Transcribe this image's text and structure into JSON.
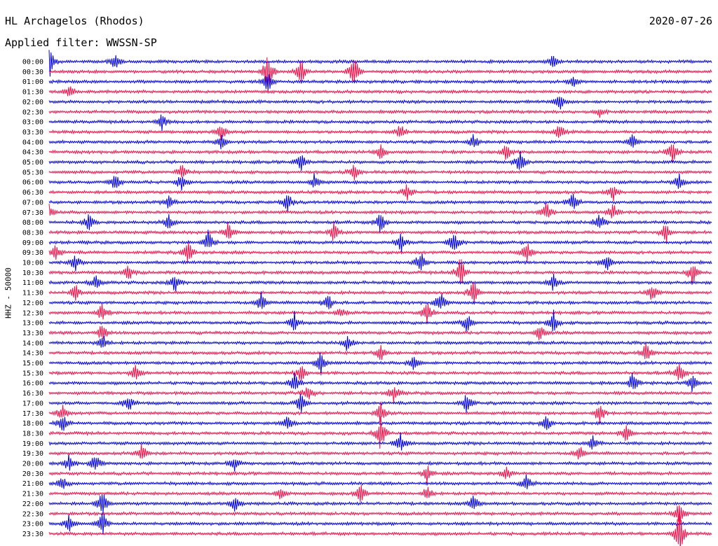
{
  "header": {
    "station": "HL Archagelos (Rhodos)",
    "date": "2020-07-26",
    "filter": "Applied filter: WWSSN-SP"
  },
  "colors": {
    "trace_a": "#0000e6",
    "trace_b": "#f0104a",
    "background": "#ffffff"
  },
  "chart_data": {
    "type": "line",
    "title": "HL Archagelos (Rhodos)",
    "subtitle": "Applied filter: WWSSN-SP",
    "ylabel": "HHZ - 50000",
    "xlabel": "",
    "grid": false,
    "legend": "none",
    "series": [
      {
        "values": []
      }
    ],
    "row_labels": [
      "00:00",
      "00:30",
      "01:00",
      "01:30",
      "02:00",
      "02:30",
      "03:00",
      "03:30",
      "04:00",
      "04:30",
      "05:00",
      "05:30",
      "06:00",
      "06:30",
      "07:00",
      "07:30",
      "08:00",
      "08:30",
      "09:00",
      "09:30",
      "10:00",
      "10:30",
      "11:00",
      "11:30",
      "12:00",
      "12:30",
      "13:00",
      "13:30",
      "14:00",
      "14:30",
      "15:00",
      "15:30",
      "16:00",
      "16:30",
      "17:00",
      "17:30",
      "18:00",
      "18:30",
      "19:00",
      "19:30",
      "20:00",
      "20:30",
      "21:00",
      "21:30",
      "22:00",
      "22:30",
      "23:00",
      "23:30"
    ],
    "row_colors": [
      "blue",
      "red"
    ],
    "events": [
      {
        "row": 0,
        "t": 0.0,
        "amp": 1.2
      },
      {
        "row": 0,
        "t": 0.1,
        "amp": 0.6
      },
      {
        "row": 0,
        "t": 0.76,
        "amp": 0.5
      },
      {
        "row": 1,
        "t": 0.33,
        "amp": 1.4
      },
      {
        "row": 1,
        "t": 0.38,
        "amp": 0.9
      },
      {
        "row": 1,
        "t": 0.46,
        "amp": 1.2
      },
      {
        "row": 2,
        "t": 0.33,
        "amp": 0.8
      },
      {
        "row": 2,
        "t": 0.79,
        "amp": 0.4
      },
      {
        "row": 3,
        "t": 0.03,
        "amp": 0.6
      },
      {
        "row": 4,
        "t": 0.77,
        "amp": 0.6
      },
      {
        "row": 5,
        "t": 0.83,
        "amp": 0.3
      },
      {
        "row": 6,
        "t": 0.17,
        "amp": 0.6
      },
      {
        "row": 7,
        "t": 0.26,
        "amp": 0.6
      },
      {
        "row": 7,
        "t": 0.53,
        "amp": 0.6
      },
      {
        "row": 7,
        "t": 0.77,
        "amp": 0.6
      },
      {
        "row": 8,
        "t": 0.26,
        "amp": 0.6
      },
      {
        "row": 8,
        "t": 0.64,
        "amp": 0.6
      },
      {
        "row": 8,
        "t": 0.88,
        "amp": 0.5
      },
      {
        "row": 9,
        "t": 0.5,
        "amp": 0.6
      },
      {
        "row": 9,
        "t": 0.69,
        "amp": 0.6
      },
      {
        "row": 9,
        "t": 0.94,
        "amp": 0.9
      },
      {
        "row": 10,
        "t": 0.38,
        "amp": 0.6
      },
      {
        "row": 10,
        "t": 0.71,
        "amp": 0.8
      },
      {
        "row": 11,
        "t": 0.2,
        "amp": 0.6
      },
      {
        "row": 11,
        "t": 0.46,
        "amp": 0.6
      },
      {
        "row": 12,
        "t": 0.1,
        "amp": 0.6
      },
      {
        "row": 12,
        "t": 0.2,
        "amp": 0.7
      },
      {
        "row": 12,
        "t": 0.4,
        "amp": 0.6
      },
      {
        "row": 12,
        "t": 0.95,
        "amp": 0.6
      },
      {
        "row": 13,
        "t": 0.54,
        "amp": 0.7
      },
      {
        "row": 13,
        "t": 0.85,
        "amp": 0.6
      },
      {
        "row": 14,
        "t": 0.18,
        "amp": 0.6
      },
      {
        "row": 14,
        "t": 0.36,
        "amp": 0.7
      },
      {
        "row": 14,
        "t": 0.79,
        "amp": 0.8
      },
      {
        "row": 15,
        "t": 0.0,
        "amp": 0.5
      },
      {
        "row": 15,
        "t": 0.75,
        "amp": 0.7
      },
      {
        "row": 15,
        "t": 0.85,
        "amp": 0.7
      },
      {
        "row": 16,
        "t": 0.06,
        "amp": 0.6
      },
      {
        "row": 16,
        "t": 0.18,
        "amp": 0.6
      },
      {
        "row": 16,
        "t": 0.5,
        "amp": 0.8
      },
      {
        "row": 16,
        "t": 0.83,
        "amp": 0.7
      },
      {
        "row": 17,
        "t": 0.27,
        "amp": 0.7
      },
      {
        "row": 17,
        "t": 0.43,
        "amp": 0.7
      },
      {
        "row": 17,
        "t": 0.93,
        "amp": 0.7
      },
      {
        "row": 18,
        "t": 0.24,
        "amp": 0.8
      },
      {
        "row": 18,
        "t": 0.53,
        "amp": 0.8
      },
      {
        "row": 18,
        "t": 0.61,
        "amp": 1.0
      },
      {
        "row": 19,
        "t": 0.01,
        "amp": 0.6
      },
      {
        "row": 19,
        "t": 0.21,
        "amp": 0.9
      },
      {
        "row": 19,
        "t": 0.72,
        "amp": 0.9
      },
      {
        "row": 20,
        "t": 0.04,
        "amp": 0.6
      },
      {
        "row": 20,
        "t": 0.56,
        "amp": 0.9
      },
      {
        "row": 20,
        "t": 0.84,
        "amp": 0.7
      },
      {
        "row": 21,
        "t": 0.12,
        "amp": 0.6
      },
      {
        "row": 21,
        "t": 0.62,
        "amp": 1.3
      },
      {
        "row": 21,
        "t": 0.97,
        "amp": 0.8
      },
      {
        "row": 22,
        "t": 0.07,
        "amp": 0.6
      },
      {
        "row": 22,
        "t": 0.19,
        "amp": 0.7
      },
      {
        "row": 22,
        "t": 0.76,
        "amp": 0.6
      },
      {
        "row": 23,
        "t": 0.04,
        "amp": 0.6
      },
      {
        "row": 23,
        "t": 0.64,
        "amp": 1.0
      },
      {
        "row": 23,
        "t": 0.91,
        "amp": 0.7
      },
      {
        "row": 24,
        "t": 0.32,
        "amp": 0.8
      },
      {
        "row": 24,
        "t": 0.42,
        "amp": 0.7
      },
      {
        "row": 24,
        "t": 0.59,
        "amp": 0.8
      },
      {
        "row": 25,
        "t": 0.08,
        "amp": 0.7
      },
      {
        "row": 25,
        "t": 0.44,
        "amp": 0.4
      },
      {
        "row": 25,
        "t": 0.57,
        "amp": 0.9
      },
      {
        "row": 26,
        "t": 0.37,
        "amp": 0.7
      },
      {
        "row": 26,
        "t": 0.63,
        "amp": 0.7
      },
      {
        "row": 26,
        "t": 0.76,
        "amp": 0.9
      },
      {
        "row": 27,
        "t": 0.08,
        "amp": 0.7
      },
      {
        "row": 27,
        "t": 0.74,
        "amp": 0.6
      },
      {
        "row": 28,
        "t": 0.08,
        "amp": 0.7
      },
      {
        "row": 28,
        "t": 0.45,
        "amp": 0.6
      },
      {
        "row": 29,
        "t": 0.5,
        "amp": 0.6
      },
      {
        "row": 29,
        "t": 0.9,
        "amp": 0.8
      },
      {
        "row": 30,
        "t": 0.41,
        "amp": 0.9
      },
      {
        "row": 30,
        "t": 0.55,
        "amp": 0.6
      },
      {
        "row": 31,
        "t": 0.13,
        "amp": 0.6
      },
      {
        "row": 31,
        "t": 0.38,
        "amp": 0.7
      },
      {
        "row": 31,
        "t": 0.95,
        "amp": 0.8
      },
      {
        "row": 32,
        "t": 0.37,
        "amp": 0.8
      },
      {
        "row": 32,
        "t": 0.88,
        "amp": 0.8
      },
      {
        "row": 32,
        "t": 0.97,
        "amp": 0.8
      },
      {
        "row": 33,
        "t": 0.39,
        "amp": 0.7
      },
      {
        "row": 33,
        "t": 0.52,
        "amp": 0.7
      },
      {
        "row": 34,
        "t": 0.12,
        "amp": 0.7
      },
      {
        "row": 34,
        "t": 0.38,
        "amp": 0.8
      },
      {
        "row": 34,
        "t": 0.63,
        "amp": 0.7
      },
      {
        "row": 35,
        "t": 0.02,
        "amp": 0.7
      },
      {
        "row": 35,
        "t": 0.5,
        "amp": 0.7
      },
      {
        "row": 35,
        "t": 0.83,
        "amp": 0.9
      },
      {
        "row": 36,
        "t": 0.02,
        "amp": 0.8
      },
      {
        "row": 36,
        "t": 0.36,
        "amp": 0.6
      },
      {
        "row": 36,
        "t": 0.75,
        "amp": 0.7
      },
      {
        "row": 37,
        "t": 0.5,
        "amp": 1.2
      },
      {
        "row": 37,
        "t": 0.87,
        "amp": 0.6
      },
      {
        "row": 38,
        "t": 0.53,
        "amp": 0.8
      },
      {
        "row": 38,
        "t": 0.82,
        "amp": 0.6
      },
      {
        "row": 39,
        "t": 0.14,
        "amp": 0.7
      },
      {
        "row": 39,
        "t": 0.8,
        "amp": 0.6
      },
      {
        "row": 40,
        "t": 0.03,
        "amp": 0.6
      },
      {
        "row": 40,
        "t": 0.07,
        "amp": 0.7
      },
      {
        "row": 40,
        "t": 0.28,
        "amp": 0.6
      },
      {
        "row": 41,
        "t": 0.57,
        "amp": 0.7
      },
      {
        "row": 41,
        "t": 0.69,
        "amp": 0.5
      },
      {
        "row": 42,
        "t": 0.02,
        "amp": 0.5
      },
      {
        "row": 42,
        "t": 0.72,
        "amp": 0.6
      },
      {
        "row": 43,
        "t": 0.35,
        "amp": 0.6
      },
      {
        "row": 43,
        "t": 0.47,
        "amp": 0.7
      },
      {
        "row": 43,
        "t": 0.57,
        "amp": 0.6
      },
      {
        "row": 44,
        "t": 0.08,
        "amp": 1.0
      },
      {
        "row": 44,
        "t": 0.28,
        "amp": 0.6
      },
      {
        "row": 44,
        "t": 0.64,
        "amp": 0.6
      },
      {
        "row": 45,
        "t": 0.95,
        "amp": 0.9
      },
      {
        "row": 46,
        "t": 0.03,
        "amp": 0.7
      },
      {
        "row": 46,
        "t": 0.08,
        "amp": 1.0
      },
      {
        "row": 47,
        "t": 0.95,
        "amp": 1.6
      }
    ]
  }
}
